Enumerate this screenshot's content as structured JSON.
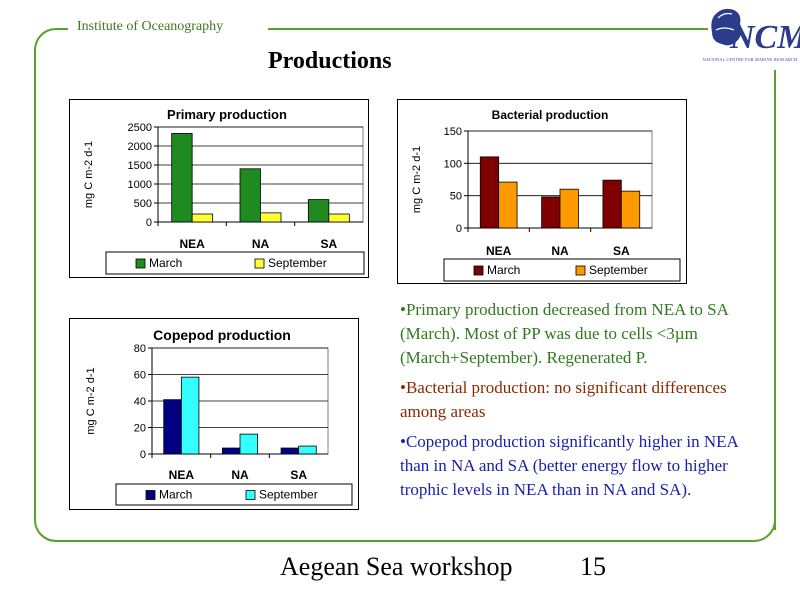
{
  "header": {
    "institute": "Institute of Oceanography",
    "title": "Productions",
    "logo_text": "NCMR",
    "logo_subtext": "NATIONAL CENTRE FOR MARINE RESEARCH"
  },
  "bullets": [
    {
      "text": "•Primary production decreased from NEA to SA (March). Most of PP was due to cells <3µm (March+September). Regenerated P.",
      "color": "#2f7a1c"
    },
    {
      "text": "•Bacterial production: no significant differences among areas",
      "color": "#8b2a00"
    },
    {
      "text": "•Copepod production significantly higher in NEA than in NA and SA (better energy flow to higher trophic levels in NEA than in NA and SA).",
      "color": "#1a1ea8"
    }
  ],
  "footer": {
    "text": "Aegean Sea workshop",
    "page": "15"
  },
  "chart_data": [
    {
      "type": "bar",
      "title": "Primary production",
      "ylabel": "mg C m-2 d-1",
      "categories": [
        "NEA",
        "NA",
        "SA"
      ],
      "ylim": [
        0,
        2500
      ],
      "yticks": [
        "0",
        "500",
        "1000",
        "1500",
        "2000",
        "2500"
      ],
      "series": [
        {
          "name": "March",
          "values": [
            2330,
            1400,
            590
          ],
          "color": "#1f8a1f"
        },
        {
          "name": "September",
          "values": [
            210,
            240,
            210
          ],
          "color": "#ffff33"
        }
      ],
      "grid": true,
      "legend": "bottom"
    },
    {
      "type": "bar",
      "title": "Bacterial production",
      "ylabel": "mg C m-2 d-1",
      "categories": [
        "NEA",
        "NA",
        "SA"
      ],
      "ylim": [
        0,
        150
      ],
      "yticks": [
        "0",
        "50",
        "100",
        "150"
      ],
      "series": [
        {
          "name": "March",
          "values": [
            110,
            48,
            74
          ],
          "color": "#800000"
        },
        {
          "name": "September",
          "values": [
            71,
            60,
            57
          ],
          "color": "#ff9900"
        }
      ],
      "grid": true,
      "legend": "bottom"
    },
    {
      "type": "bar",
      "title": "Copepod production",
      "ylabel": "mg C m-2 d-1",
      "categories": [
        "NEA",
        "NA",
        "SA"
      ],
      "ylim": [
        0,
        80
      ],
      "yticks": [
        "0",
        "20",
        "40",
        "60",
        "80"
      ],
      "series": [
        {
          "name": "March",
          "values": [
            41,
            4.5,
            4.5
          ],
          "color": "#000080"
        },
        {
          "name": "September",
          "values": [
            58,
            15,
            6
          ],
          "color": "#33ffff"
        }
      ],
      "grid": true,
      "legend": "bottom"
    }
  ]
}
